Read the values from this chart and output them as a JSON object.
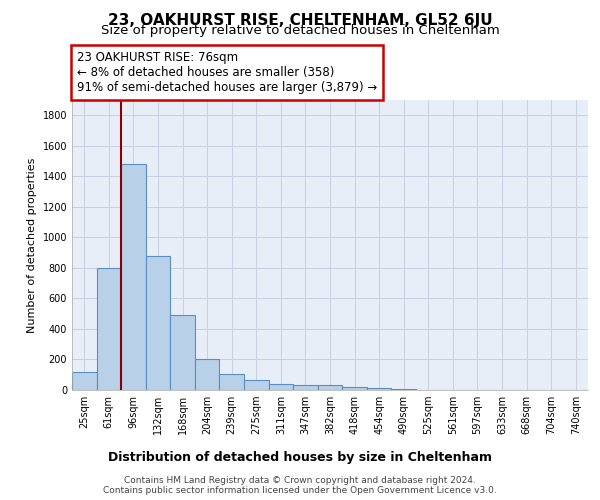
{
  "title": "23, OAKHURST RISE, CHELTENHAM, GL52 6JU",
  "subtitle": "Size of property relative to detached houses in Cheltenham",
  "xlabel": "Distribution of detached houses by size in Cheltenham",
  "ylabel": "Number of detached properties",
  "categories": [
    "25sqm",
    "61sqm",
    "96sqm",
    "132sqm",
    "168sqm",
    "204sqm",
    "239sqm",
    "275sqm",
    "311sqm",
    "347sqm",
    "382sqm",
    "418sqm",
    "454sqm",
    "490sqm",
    "525sqm",
    "561sqm",
    "597sqm",
    "633sqm",
    "668sqm",
    "704sqm",
    "740sqm"
  ],
  "values": [
    120,
    800,
    1480,
    880,
    490,
    200,
    105,
    65,
    40,
    35,
    30,
    20,
    10,
    5,
    3,
    2,
    2,
    1,
    1,
    1,
    0
  ],
  "bar_color": "#b8d0e8",
  "bar_edge_color": "#5a8fc2",
  "ylim": [
    0,
    1900
  ],
  "yticks": [
    0,
    200,
    400,
    600,
    800,
    1000,
    1200,
    1400,
    1600,
    1800
  ],
  "vline_x": 1.5,
  "vline_color": "#8b0000",
  "annotation_box_text": "23 OAKHURST RISE: 76sqm\n← 8% of detached houses are smaller (358)\n91% of semi-detached houses are larger (3,879) →",
  "fig_bg_color": "#ffffff",
  "plot_bg_color": "#e8eef8",
  "grid_color": "#c8d0e0",
  "footer_text": "Contains HM Land Registry data © Crown copyright and database right 2024.\nContains public sector information licensed under the Open Government Licence v3.0.",
  "title_fontsize": 11,
  "subtitle_fontsize": 9.5,
  "xlabel_fontsize": 9,
  "ylabel_fontsize": 8,
  "tick_fontsize": 7,
  "annotation_fontsize": 8.5,
  "footer_fontsize": 6.5
}
